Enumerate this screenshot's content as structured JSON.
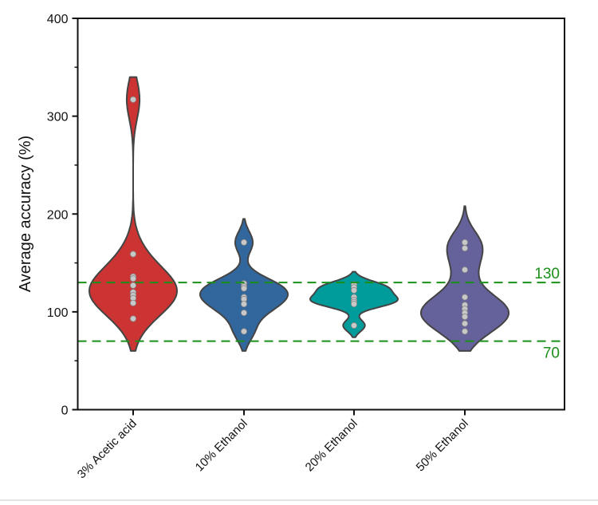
{
  "chart_data": {
    "type": "violin",
    "title": "",
    "xlabel": "",
    "ylabel": "Average accuracy (%)",
    "ylim": [
      0,
      400
    ],
    "yticks": [
      0,
      100,
      200,
      300,
      400
    ],
    "yticks_minor": [
      50,
      150,
      250,
      350
    ],
    "categories": [
      "3% Acetic acid",
      "10% Ethanol",
      "20% Ethanol",
      "50% Ethanol"
    ],
    "series": [
      {
        "name": "3% Acetic acid",
        "color": "#cc3333",
        "density_range": [
          60,
          340
        ],
        "bandwidth": 20,
        "values": [
          317,
          159,
          136,
          134,
          127,
          120,
          117,
          114,
          109,
          93
        ]
      },
      {
        "name": "10% Ethanol",
        "color": "#31679c",
        "density_range": [
          60,
          195
        ],
        "bandwidth": 11,
        "values": [
          171,
          129,
          126,
          124,
          115,
          113,
          108,
          99,
          80
        ]
      },
      {
        "name": "20% Ethanol",
        "color": "#009b9b",
        "density_range": [
          74,
          141
        ],
        "bandwidth": 6,
        "values": [
          128,
          125,
          122,
          115,
          112,
          110,
          108,
          86
        ]
      },
      {
        "name": "50% Ethanol",
        "color": "#64619b",
        "density_range": [
          60,
          208
        ],
        "bandwidth": 15,
        "values": [
          171,
          165,
          143,
          115,
          107,
          103,
          99,
          95,
          88,
          80
        ]
      }
    ],
    "reference_lines": [
      {
        "value": 130,
        "label": "130",
        "color": "#1a8f1a",
        "style": "dashed"
      },
      {
        "value": 70,
        "label": "70",
        "color": "#1a8f1a",
        "style": "dashed"
      }
    ],
    "point_color": "#c8c8c8",
    "grid": false,
    "legend": "none"
  }
}
